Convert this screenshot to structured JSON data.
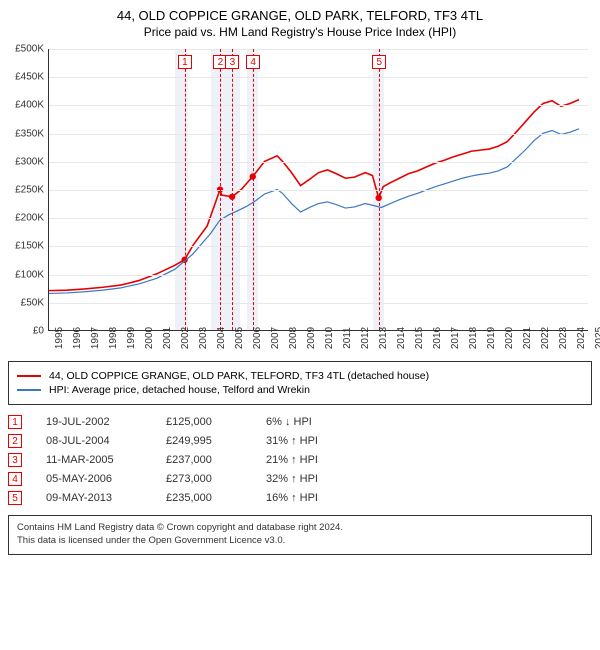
{
  "title": {
    "line1": "44, OLD COPPICE GRANGE, OLD PARK, TELFORD, TF3 4TL",
    "line2": "Price paid vs. HM Land Registry's House Price Index (HPI)"
  },
  "chart": {
    "type": "line",
    "background_color": "#ffffff",
    "grid_color": "#e8e8e8",
    "band_fill": "#eef2f8",
    "x_range": [
      1995,
      2025
    ],
    "x_ticks": [
      1995,
      1996,
      1997,
      1998,
      1999,
      2000,
      2001,
      2002,
      2003,
      2004,
      2005,
      2006,
      2007,
      2008,
      2009,
      2010,
      2011,
      2012,
      2013,
      2014,
      2015,
      2016,
      2017,
      2018,
      2019,
      2020,
      2021,
      2022,
      2023,
      2024,
      2025
    ],
    "y_range": [
      0,
      500000
    ],
    "y_ticks": [
      0,
      50000,
      100000,
      150000,
      200000,
      250000,
      300000,
      350000,
      400000,
      450000,
      500000
    ],
    "y_tick_labels": [
      "£0",
      "£50K",
      "£100K",
      "£150K",
      "£200K",
      "£250K",
      "£300K",
      "£350K",
      "£400K",
      "£450K",
      "£500K"
    ],
    "bands": [
      {
        "from": 2002.0,
        "to": 2002.7
      },
      {
        "from": 2004.0,
        "to": 2005.6
      },
      {
        "from": 2006.0,
        "to": 2006.6
      },
      {
        "from": 2013.0,
        "to": 2013.6
      }
    ],
    "dash_lines": [
      {
        "x": 2002.55,
        "color": "#e60000"
      },
      {
        "x": 2004.52,
        "color": "#e60000"
      },
      {
        "x": 2005.19,
        "color": "#e60000"
      },
      {
        "x": 2006.34,
        "color": "#e60000"
      },
      {
        "x": 2013.35,
        "color": "#e60000"
      }
    ],
    "marker_boxes": [
      {
        "x": 2002.55,
        "label": "1"
      },
      {
        "x": 2004.52,
        "label": "2"
      },
      {
        "x": 2005.19,
        "label": "3"
      },
      {
        "x": 2006.34,
        "label": "4"
      },
      {
        "x": 2013.35,
        "label": "5"
      }
    ],
    "series": [
      {
        "name": "property",
        "color": "#e60000",
        "width": 1.6,
        "points": [
          [
            1995,
            70000
          ],
          [
            1996,
            71000
          ],
          [
            1997,
            73000
          ],
          [
            1998,
            76000
          ],
          [
            1999,
            80000
          ],
          [
            2000,
            88000
          ],
          [
            2001,
            100000
          ],
          [
            2002,
            115000
          ],
          [
            2002.55,
            125000
          ],
          [
            2003,
            150000
          ],
          [
            2003.8,
            185000
          ],
          [
            2004.3,
            230000
          ],
          [
            2004.52,
            249995
          ],
          [
            2004.6,
            240000
          ],
          [
            2005.19,
            237000
          ],
          [
            2005.7,
            250000
          ],
          [
            2006.34,
            273000
          ],
          [
            2007,
            300000
          ],
          [
            2007.7,
            310000
          ],
          [
            2008,
            300000
          ],
          [
            2008.5,
            280000
          ],
          [
            2009,
            257000
          ],
          [
            2009.5,
            268000
          ],
          [
            2010,
            280000
          ],
          [
            2010.5,
            285000
          ],
          [
            2011,
            278000
          ],
          [
            2011.5,
            270000
          ],
          [
            2012,
            272000
          ],
          [
            2012.6,
            280000
          ],
          [
            2013,
            275000
          ],
          [
            2013.35,
            235000
          ],
          [
            2013.6,
            255000
          ],
          [
            2014,
            262000
          ],
          [
            2014.5,
            270000
          ],
          [
            2015,
            278000
          ],
          [
            2015.5,
            283000
          ],
          [
            2016,
            290000
          ],
          [
            2016.5,
            297000
          ],
          [
            2017,
            302000
          ],
          [
            2017.5,
            308000
          ],
          [
            2018,
            313000
          ],
          [
            2018.5,
            318000
          ],
          [
            2019,
            320000
          ],
          [
            2019.5,
            322000
          ],
          [
            2020,
            327000
          ],
          [
            2020.5,
            335000
          ],
          [
            2021,
            352000
          ],
          [
            2021.5,
            370000
          ],
          [
            2022,
            388000
          ],
          [
            2022.5,
            403000
          ],
          [
            2023,
            408000
          ],
          [
            2023.5,
            398000
          ],
          [
            2024,
            403000
          ],
          [
            2024.5,
            410000
          ]
        ],
        "sale_dots": [
          [
            2002.55,
            125000
          ],
          [
            2004.52,
            249995
          ],
          [
            2005.19,
            237000
          ],
          [
            2006.34,
            273000
          ],
          [
            2013.35,
            235000
          ]
        ]
      },
      {
        "name": "hpi",
        "color": "#3b78c4",
        "width": 1.2,
        "points": [
          [
            1995,
            65000
          ],
          [
            1996,
            66000
          ],
          [
            1997,
            68000
          ],
          [
            1998,
            71000
          ],
          [
            1999,
            75000
          ],
          [
            2000,
            82000
          ],
          [
            2001,
            92000
          ],
          [
            2002,
            108000
          ],
          [
            2003,
            135000
          ],
          [
            2004,
            172000
          ],
          [
            2004.5,
            195000
          ],
          [
            2005,
            205000
          ],
          [
            2005.5,
            212000
          ],
          [
            2006,
            220000
          ],
          [
            2006.5,
            230000
          ],
          [
            2007,
            242000
          ],
          [
            2007.7,
            250000
          ],
          [
            2008,
            243000
          ],
          [
            2008.5,
            225000
          ],
          [
            2009,
            210000
          ],
          [
            2009.5,
            218000
          ],
          [
            2010,
            225000
          ],
          [
            2010.5,
            228000
          ],
          [
            2011,
            223000
          ],
          [
            2011.5,
            217000
          ],
          [
            2012,
            219000
          ],
          [
            2012.6,
            225000
          ],
          [
            2013,
            222000
          ],
          [
            2013.5,
            218000
          ],
          [
            2014,
            225000
          ],
          [
            2014.5,
            232000
          ],
          [
            2015,
            238000
          ],
          [
            2015.5,
            243000
          ],
          [
            2016,
            249000
          ],
          [
            2016.5,
            255000
          ],
          [
            2017,
            260000
          ],
          [
            2017.5,
            265000
          ],
          [
            2018,
            270000
          ],
          [
            2018.5,
            274000
          ],
          [
            2019,
            277000
          ],
          [
            2019.5,
            279000
          ],
          [
            2020,
            283000
          ],
          [
            2020.5,
            290000
          ],
          [
            2021,
            305000
          ],
          [
            2021.5,
            320000
          ],
          [
            2022,
            337000
          ],
          [
            2022.5,
            350000
          ],
          [
            2023,
            355000
          ],
          [
            2023.5,
            348000
          ],
          [
            2024,
            352000
          ],
          [
            2024.5,
            358000
          ]
        ]
      }
    ]
  },
  "legend": {
    "items": [
      {
        "color": "#e60000",
        "label": "44, OLD COPPICE GRANGE, OLD PARK, TELFORD, TF3 4TL (detached house)"
      },
      {
        "color": "#3b78c4",
        "label": "HPI: Average price, detached house, Telford and Wrekin"
      }
    ]
  },
  "sales": [
    {
      "n": "1",
      "date": "19-JUL-2002",
      "price": "£125,000",
      "diff": "6% ↓ HPI"
    },
    {
      "n": "2",
      "date": "08-JUL-2004",
      "price": "£249,995",
      "diff": "31% ↑ HPI"
    },
    {
      "n": "3",
      "date": "11-MAR-2005",
      "price": "£237,000",
      "diff": "21% ↑ HPI"
    },
    {
      "n": "4",
      "date": "05-MAY-2006",
      "price": "£273,000",
      "diff": "32% ↑ HPI"
    },
    {
      "n": "5",
      "date": "09-MAY-2013",
      "price": "£235,000",
      "diff": "16% ↑ HPI"
    }
  ],
  "footer": {
    "line1": "Contains HM Land Registry data © Crown copyright and database right 2024.",
    "line2": "This data is licensed under the Open Government Licence v3.0."
  }
}
